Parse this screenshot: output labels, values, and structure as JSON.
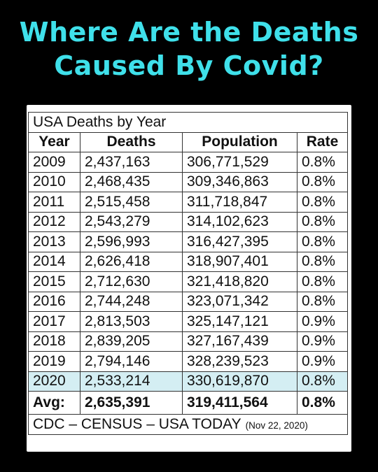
{
  "headline": {
    "line1": "Where Are the Deaths",
    "line2": "Caused By Covid?"
  },
  "table": {
    "title": "USA Deaths by Year",
    "headers": [
      "Year",
      "Deaths",
      "Population",
      "Rate"
    ],
    "rows": [
      [
        "2009",
        "2,437,163",
        "306,771,529",
        "0.8%"
      ],
      [
        "2010",
        "2,468,435",
        "309,346,863",
        "0.8%"
      ],
      [
        "2011",
        "2,515,458",
        "311,718,847",
        "0.8%"
      ],
      [
        "2012",
        "2,543,279",
        "314,102,623",
        "0.8%"
      ],
      [
        "2013",
        "2,596,993",
        "316,427,395",
        "0.8%"
      ],
      [
        "2014",
        "2,626,418",
        "318,907,401",
        "0.8%"
      ],
      [
        "2015",
        "2,712,630",
        "321,418,820",
        "0.8%"
      ],
      [
        "2016",
        "2,744,248",
        "323,071,342",
        "0.8%"
      ],
      [
        "2017",
        "2,813,503",
        "325,147,121",
        "0.9%"
      ],
      [
        "2018",
        "2,839,205",
        "327,167,439",
        "0.9%"
      ],
      [
        "2019",
        "2,794,146",
        "328,239,523",
        "0.9%"
      ],
      [
        "2020",
        "2,533,214",
        "330,619,870",
        "0.8%"
      ]
    ],
    "highlight_row": 11,
    "highlight_color": "#d4eef3",
    "avg": [
      "Avg:",
      "2,635,391",
      "319,411,564",
      "0.8%"
    ],
    "source": "CDC – CENSUS – USA TODAY",
    "source_date": "(Nov 22, 2020)"
  },
  "colors": {
    "background": "#000000",
    "headline": "#3fe0ea",
    "card": "#ffffff"
  }
}
